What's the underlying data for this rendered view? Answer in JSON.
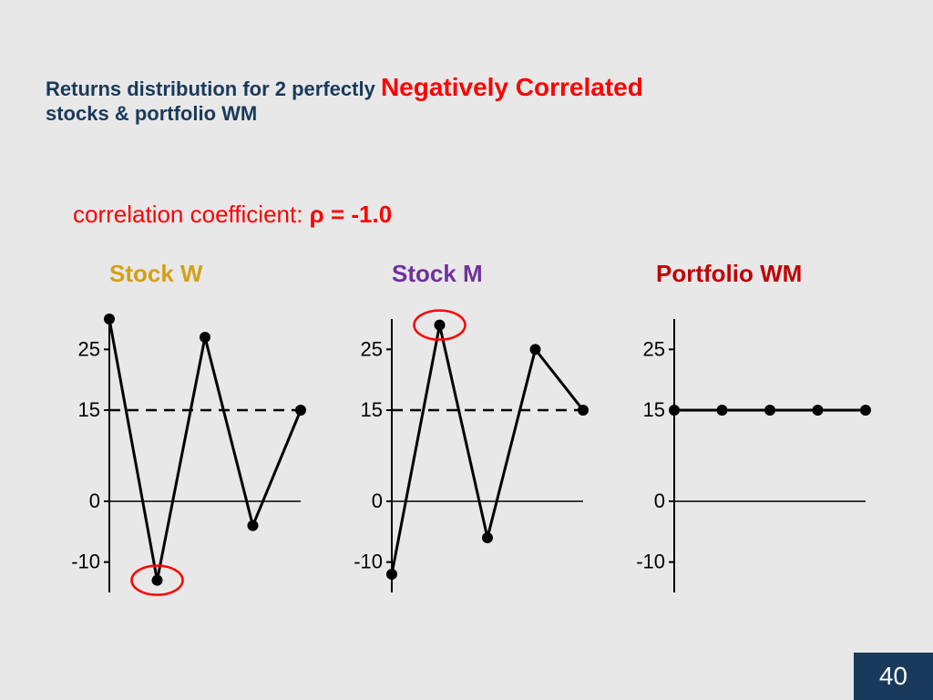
{
  "page_number": "40",
  "background_color": "#e8e8e8",
  "title": {
    "part1": "Returns distribution for 2 perfectly ",
    "part2": "Negatively Correlated",
    "part3": "stocks & portfolio WM",
    "dark_color": "#1a3a5c",
    "red_color": "#ff0000",
    "dark_fontsize": 22,
    "red_fontsize": 28
  },
  "correlation": {
    "text": "correlation coefficient: ",
    "value": "ρ = -1.0",
    "color": "#ff0000",
    "fontsize": 26
  },
  "charts": {
    "yticks": [
      25,
      15,
      0,
      -10
    ],
    "ylim": [
      -15,
      30
    ],
    "ref_line_y": 15,
    "axis_color": "#000000",
    "line_color": "#000000",
    "line_width": 3,
    "marker_radius": 6,
    "circle_stroke": "#ff0000",
    "circle_stroke_width": 2.5,
    "tick_fontsize": 22,
    "title_fontsize": 26,
    "stock_w": {
      "title": "Stock W",
      "title_color": "#d4a017",
      "y_values": [
        30,
        -13,
        27,
        -4,
        15
      ],
      "circled_index": 1
    },
    "stock_m": {
      "title": "Stock M",
      "title_color": "#7030a0",
      "y_values": [
        -12,
        29,
        -6,
        25,
        15
      ],
      "circled_index": 1
    },
    "portfolio_wm": {
      "title": "Portfolio WM",
      "title_color": "#c00000",
      "y_values": [
        15,
        15,
        15,
        15,
        15
      ],
      "circled_index": null
    }
  }
}
